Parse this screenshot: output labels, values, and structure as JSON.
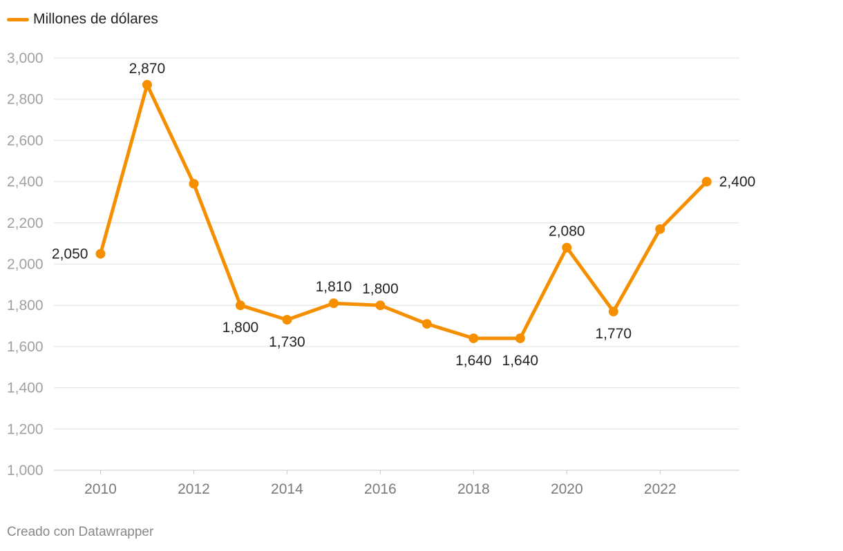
{
  "chart_data": {
    "type": "line",
    "legend": "Millones de dólares",
    "x": [
      2010,
      2011,
      2012,
      2013,
      2014,
      2015,
      2016,
      2017,
      2018,
      2019,
      2020,
      2021,
      2022,
      2023
    ],
    "series": [
      {
        "name": "Millones de dólares",
        "values": [
          2050,
          2870,
          2390,
          1800,
          1730,
          1810,
          1800,
          1710,
          1640,
          1640,
          2080,
          1770,
          2170,
          2400
        ]
      }
    ],
    "data_labels": [
      {
        "index": 0,
        "text": "2,050",
        "pos": "left"
      },
      {
        "index": 1,
        "text": "2,870",
        "pos": "above"
      },
      {
        "index": 3,
        "text": "1,800",
        "pos": "below"
      },
      {
        "index": 4,
        "text": "1,730",
        "pos": "below"
      },
      {
        "index": 5,
        "text": "1,810",
        "pos": "above"
      },
      {
        "index": 6,
        "text": "1,800",
        "pos": "above"
      },
      {
        "index": 8,
        "text": "1,640",
        "pos": "below"
      },
      {
        "index": 9,
        "text": "1,640",
        "pos": "below"
      },
      {
        "index": 10,
        "text": "2,080",
        "pos": "above"
      },
      {
        "index": 11,
        "text": "1,770",
        "pos": "below"
      },
      {
        "index": 13,
        "text": "2,400",
        "pos": "right"
      }
    ],
    "y_ticks": [
      "1,000",
      "1,200",
      "1,400",
      "1,600",
      "1,800",
      "2,000",
      "2,200",
      "2,400",
      "2,600",
      "2,800",
      "3,000"
    ],
    "x_ticks": [
      "2010",
      "2012",
      "2014",
      "2016",
      "2018",
      "2020",
      "2022"
    ],
    "ylim": [
      1000,
      3000
    ],
    "xlim": [
      2009.0,
      2023.7
    ],
    "grid": true,
    "color": "#f68f00",
    "title": "",
    "xlabel": "",
    "ylabel": ""
  },
  "footer": {
    "credit": "Creado con Datawrapper"
  }
}
